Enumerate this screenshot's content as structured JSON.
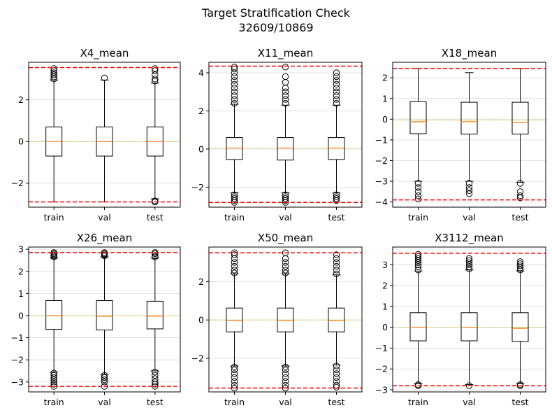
{
  "figure": {
    "title_line1": "Target Stratification Check",
    "title_line2": "32609/10869"
  },
  "colors": {
    "box": "#000000",
    "median": "#ff7f0e",
    "limit_line": "#ff0000",
    "mean_line": "#bcbd22",
    "grid": "#d8d8d8"
  },
  "chart_data": [
    {
      "type": "box",
      "title": "X4_mean",
      "categories": [
        "train",
        "val",
        "test"
      ],
      "ylim": [
        -3.15,
        3.8
      ],
      "yticks": [
        -2,
        0,
        2
      ],
      "ytick_labels": [
        "−2",
        "0",
        "2"
      ],
      "grid": "y",
      "hlines_dashed_red": [
        3.55,
        -2.9
      ],
      "hline_dotted_mean": 0.0,
      "boxes": [
        {
          "name": "train",
          "whisker_low": -2.9,
          "q1": -0.7,
          "median": 0.0,
          "q3": 0.7,
          "whisker_high": 2.95,
          "outliers_high": [
            3.0,
            3.1,
            3.2,
            3.3,
            3.4,
            3.5
          ],
          "outliers_low": []
        },
        {
          "name": "val",
          "whisker_low": -2.9,
          "q1": -0.7,
          "median": 0.0,
          "q3": 0.7,
          "whisker_high": 2.95,
          "outliers_high": [
            3.05
          ],
          "outliers_low": []
        },
        {
          "name": "test",
          "whisker_low": -2.75,
          "q1": -0.7,
          "median": 0.0,
          "q3": 0.7,
          "whisker_high": 2.8,
          "outliers_high": [
            2.9,
            3.0,
            3.2,
            3.4,
            3.5
          ],
          "outliers_low": [
            -2.85,
            -2.9
          ]
        }
      ]
    },
    {
      "type": "box",
      "title": "X11_mean",
      "categories": [
        "train",
        "val",
        "test"
      ],
      "ylim": [
        -3.05,
        4.55
      ],
      "yticks": [
        -2,
        0,
        2,
        4
      ],
      "ytick_labels": [
        "−2",
        "0",
        "2",
        "4"
      ],
      "grid": "y",
      "hlines_dashed_red": [
        4.35,
        -2.8
      ],
      "hline_dotted_mean": 0.05,
      "boxes": [
        {
          "name": "train",
          "whisker_low": -2.3,
          "q1": -0.55,
          "median": 0.05,
          "q3": 0.6,
          "whisker_high": 2.35,
          "outliers_high": [
            2.4,
            2.6,
            2.8,
            3.0,
            3.2,
            3.4,
            3.6,
            3.8,
            4.0,
            4.2,
            4.3
          ],
          "outliers_low": [
            -2.4,
            -2.5,
            -2.6,
            -2.7,
            -2.8
          ]
        },
        {
          "name": "val",
          "whisker_low": -2.3,
          "q1": -0.58,
          "median": 0.05,
          "q3": 0.6,
          "whisker_high": 2.3,
          "outliers_high": [
            2.4,
            2.6,
            2.8,
            3.0,
            3.2,
            3.5,
            3.8,
            4.3
          ],
          "outliers_low": [
            -2.4,
            -2.5,
            -2.6,
            -2.7,
            -2.8
          ]
        },
        {
          "name": "test",
          "whisker_low": -2.3,
          "q1": -0.55,
          "median": 0.05,
          "q3": 0.6,
          "whisker_high": 2.3,
          "outliers_high": [
            2.4,
            2.6,
            2.8,
            3.0,
            3.2,
            3.4,
            3.6,
            3.8,
            4.0
          ],
          "outliers_low": [
            -2.4,
            -2.5,
            -2.6,
            -2.7
          ]
        }
      ]
    },
    {
      "type": "box",
      "title": "X18_mean",
      "categories": [
        "train",
        "val",
        "test"
      ],
      "ylim": [
        -4.25,
        2.75
      ],
      "yticks": [
        -4,
        -3,
        -2,
        -1,
        0,
        1,
        2
      ],
      "ytick_labels": [
        "−4",
        "−3",
        "−2",
        "−1",
        "0",
        "1",
        "2"
      ],
      "grid": "y",
      "hlines_dashed_red": [
        2.45,
        -3.9
      ],
      "hline_dotted_mean": -0.05,
      "boxes": [
        {
          "name": "train",
          "whisker_low": -3.0,
          "q1": -0.7,
          "median": -0.12,
          "q3": 0.85,
          "whisker_high": 2.45,
          "outliers_high": [],
          "outliers_low": [
            -3.1,
            -3.3,
            -3.5,
            -3.7,
            -3.85
          ]
        },
        {
          "name": "val",
          "whisker_low": -3.0,
          "q1": -0.72,
          "median": -0.12,
          "q3": 0.82,
          "whisker_high": 2.25,
          "outliers_high": [],
          "outliers_low": [
            -3.1,
            -3.3,
            -3.45,
            -3.6
          ]
        },
        {
          "name": "test",
          "whisker_low": -3.05,
          "q1": -0.72,
          "median": -0.15,
          "q3": 0.82,
          "whisker_high": 2.45,
          "outliers_high": [],
          "outliers_low": [
            -3.1,
            -3.5,
            -3.7,
            -3.8
          ]
        }
      ]
    },
    {
      "type": "box",
      "title": "X26_mean",
      "categories": [
        "train",
        "val",
        "test"
      ],
      "ylim": [
        -3.45,
        3.1
      ],
      "yticks": [
        -3,
        -2,
        -1,
        0,
        1,
        2,
        3
      ],
      "ytick_labels": [
        "−3",
        "−2",
        "−1",
        "0",
        "1",
        "2",
        "3"
      ],
      "grid": "y",
      "hlines_dashed_red": [
        2.85,
        -3.2
      ],
      "hline_dotted_mean": 0.0,
      "boxes": [
        {
          "name": "train",
          "whisker_low": -2.55,
          "q1": -0.62,
          "median": 0.0,
          "q3": 0.68,
          "whisker_high": 2.6,
          "outliers_high": [
            2.65,
            2.7,
            2.75,
            2.8,
            2.85
          ],
          "outliers_low": [
            -2.6,
            -2.7,
            -2.8,
            -2.9,
            -3.0,
            -3.1,
            -3.2
          ]
        },
        {
          "name": "val",
          "whisker_low": -2.65,
          "q1": -0.65,
          "median": -0.03,
          "q3": 0.68,
          "whisker_high": 2.65,
          "outliers_high": [
            2.7,
            2.75,
            2.8,
            2.85
          ],
          "outliers_low": [
            -2.7,
            -2.8,
            -2.9,
            -3.0,
            -3.2
          ]
        },
        {
          "name": "test",
          "whisker_low": -2.5,
          "q1": -0.6,
          "median": -0.03,
          "q3": 0.65,
          "whisker_high": 2.6,
          "outliers_high": [
            2.65,
            2.7,
            2.8,
            2.85
          ],
          "outliers_low": [
            -2.55,
            -2.7,
            -2.85,
            -3.0,
            -3.1,
            -3.2
          ]
        }
      ]
    },
    {
      "type": "box",
      "title": "X50_mean",
      "categories": [
        "train",
        "val",
        "test"
      ],
      "ylim": [
        -3.75,
        3.8
      ],
      "yticks": [
        -2,
        0,
        2
      ],
      "ytick_labels": [
        "−2",
        "0",
        "2"
      ],
      "grid": "y",
      "hlines_dashed_red": [
        3.5,
        -3.55
      ],
      "hline_dotted_mean": 0.0,
      "boxes": [
        {
          "name": "train",
          "whisker_low": -2.4,
          "q1": -0.62,
          "median": -0.02,
          "q3": 0.62,
          "whisker_high": 2.4,
          "outliers_high": [
            2.45,
            2.6,
            2.8,
            3.0,
            3.2,
            3.4,
            3.5
          ],
          "outliers_low": [
            -2.45,
            -2.6,
            -2.8,
            -3.0,
            -3.2,
            -3.4,
            -3.55
          ]
        },
        {
          "name": "val",
          "whisker_low": -2.4,
          "q1": -0.62,
          "median": -0.02,
          "q3": 0.62,
          "whisker_high": 2.4,
          "outliers_high": [
            2.45,
            2.6,
            2.8,
            3.0,
            3.2,
            3.5
          ],
          "outliers_low": [
            -2.45,
            -2.6,
            -2.8,
            -3.0,
            -3.2,
            -3.4,
            -3.55
          ]
        },
        {
          "name": "test",
          "whisker_low": -2.35,
          "q1": -0.62,
          "median": -0.02,
          "q3": 0.62,
          "whisker_high": 2.35,
          "outliers_high": [
            2.4,
            2.6,
            2.8,
            3.0,
            3.2,
            3.4
          ],
          "outliers_low": [
            -2.4,
            -2.6,
            -2.8,
            -3.0,
            -3.2,
            -3.4,
            -3.5
          ]
        }
      ]
    },
    {
      "type": "box",
      "title": "X3112_mean",
      "categories": [
        "train",
        "val",
        "test"
      ],
      "ylim": [
        -3.1,
        3.85
      ],
      "yticks": [
        -3,
        -2,
        -1,
        0,
        1,
        2,
        3
      ],
      "ytick_labels": [
        "−3",
        "−2",
        "−1",
        "0",
        "1",
        "2",
        "3"
      ],
      "grid": "y",
      "hlines_dashed_red": [
        3.55,
        -2.8
      ],
      "hline_dotted_mean": 0.0,
      "boxes": [
        {
          "name": "train",
          "whisker_low": -2.7,
          "q1": -0.65,
          "median": 0.0,
          "q3": 0.7,
          "whisker_high": 2.7,
          "outliers_high": [
            2.75,
            2.9,
            3.0,
            3.1,
            3.2,
            3.3,
            3.4,
            3.5
          ],
          "outliers_low": [
            -2.75,
            -2.8
          ]
        },
        {
          "name": "val",
          "whisker_low": -2.75,
          "q1": -0.65,
          "median": 0.0,
          "q3": 0.7,
          "whisker_high": 2.75,
          "outliers_high": [
            2.8,
            2.9,
            3.0,
            3.1,
            3.2,
            3.3
          ],
          "outliers_low": [
            -2.8
          ]
        },
        {
          "name": "test",
          "whisker_low": -2.7,
          "q1": -0.68,
          "median": -0.05,
          "q3": 0.7,
          "whisker_high": 2.7,
          "outliers_high": [
            2.75,
            2.85,
            2.95,
            3.05,
            3.15
          ],
          "outliers_low": [
            -2.75,
            -2.8
          ]
        }
      ]
    }
  ]
}
